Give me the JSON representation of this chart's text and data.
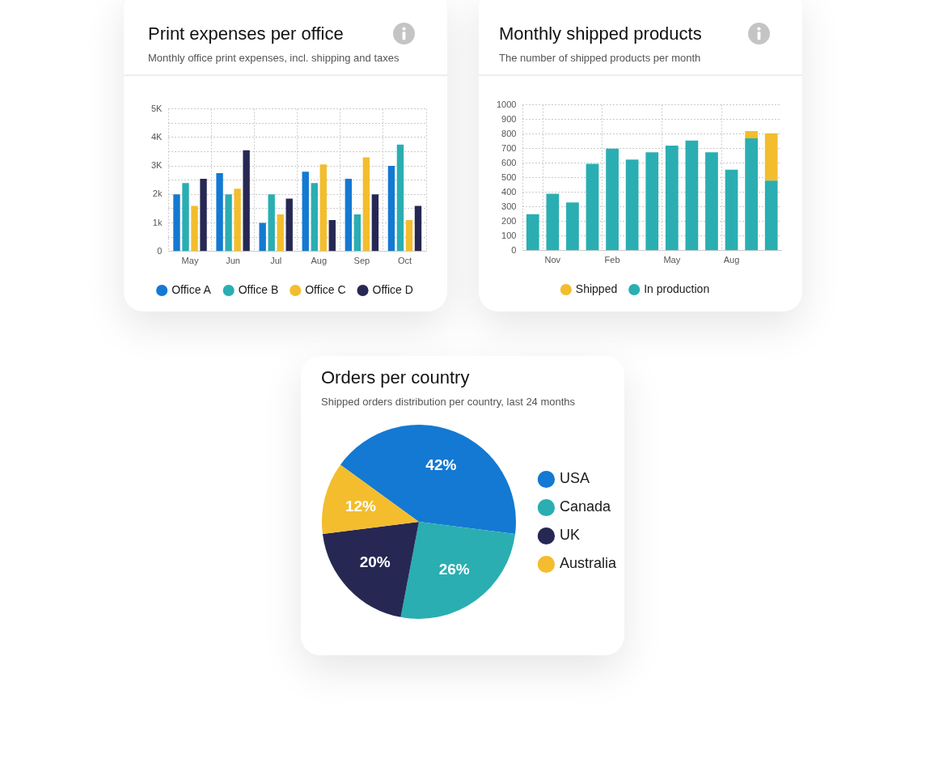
{
  "chart_data": [
    {
      "type": "bar",
      "title": "Print expenses per office",
      "subtitle": "Monthly office print expenses, incl. shipping and taxes",
      "categories": [
        "May",
        "Jun",
        "Jul",
        "Aug",
        "Sep",
        "Oct"
      ],
      "series": [
        {
          "name": "Office A",
          "color": "#1479d2",
          "values": [
            2000,
            2750,
            1000,
            2800,
            2550,
            3000
          ]
        },
        {
          "name": "Office B",
          "color": "#2aaeb2",
          "values": [
            2400,
            2000,
            2000,
            2400,
            1300,
            3750
          ]
        },
        {
          "name": "Office C",
          "color": "#f3bd2d",
          "values": [
            1600,
            2200,
            1300,
            3050,
            3300,
            1100
          ]
        },
        {
          "name": "Office D",
          "color": "#262853",
          "values": [
            2550,
            3550,
            1850,
            1100,
            2000,
            1600
          ]
        }
      ],
      "ylim": [
        0,
        5000
      ],
      "yticks": [
        0,
        {
          "value": 500,
          "label": null
        },
        {
          "value": 1000,
          "label": "1k"
        },
        {
          "value": 1500,
          "label": null
        },
        {
          "value": 2000,
          "label": "2k"
        },
        {
          "value": 2500,
          "label": null
        },
        {
          "value": 3000,
          "label": "3K"
        },
        {
          "value": 3500,
          "label": null
        },
        {
          "value": 4000,
          "label": "4K"
        },
        {
          "value": 4500,
          "label": null
        },
        {
          "value": 5000,
          "label": "5K"
        }
      ],
      "grid": true,
      "legend": "bottom"
    },
    {
      "type": "bar",
      "stacked": true,
      "title": "Monthly shipped products",
      "subtitle": "The number of shipped products per month",
      "categories": [
        null,
        "Nov",
        null,
        null,
        "Feb",
        null,
        null,
        "May",
        null,
        null,
        "Aug",
        null,
        null
      ],
      "series": [
        {
          "name": "In production",
          "color": "#2aaeb2",
          "values": [
            250,
            390,
            330,
            595,
            700,
            625,
            675,
            720,
            755,
            675,
            555,
            770,
            480
          ]
        },
        {
          "name": "Shipped",
          "color": "#f3bd2d",
          "values": [
            null,
            null,
            null,
            null,
            null,
            null,
            null,
            null,
            null,
            null,
            null,
            50,
            325
          ]
        }
      ],
      "ylim": [
        0,
        1000
      ],
      "yticks": [
        0,
        100,
        200,
        300,
        400,
        500,
        600,
        700,
        800,
        900,
        1000
      ],
      "grid": true,
      "legend": "bottom"
    },
    {
      "type": "pie",
      "title": "Orders per country",
      "subtitle": "Shipped orders distribution per country, last 24 months",
      "categories": [
        "USA",
        "Canada",
        "UK",
        "Australia"
      ],
      "values": [
        42,
        26,
        20,
        12
      ],
      "colors": [
        "#1479d2",
        "#2aaeb2",
        "#262853",
        "#f3bd2d"
      ],
      "value_labels": [
        "42%",
        "26%",
        "20%",
        "12%"
      ],
      "legend": "right"
    }
  ]
}
